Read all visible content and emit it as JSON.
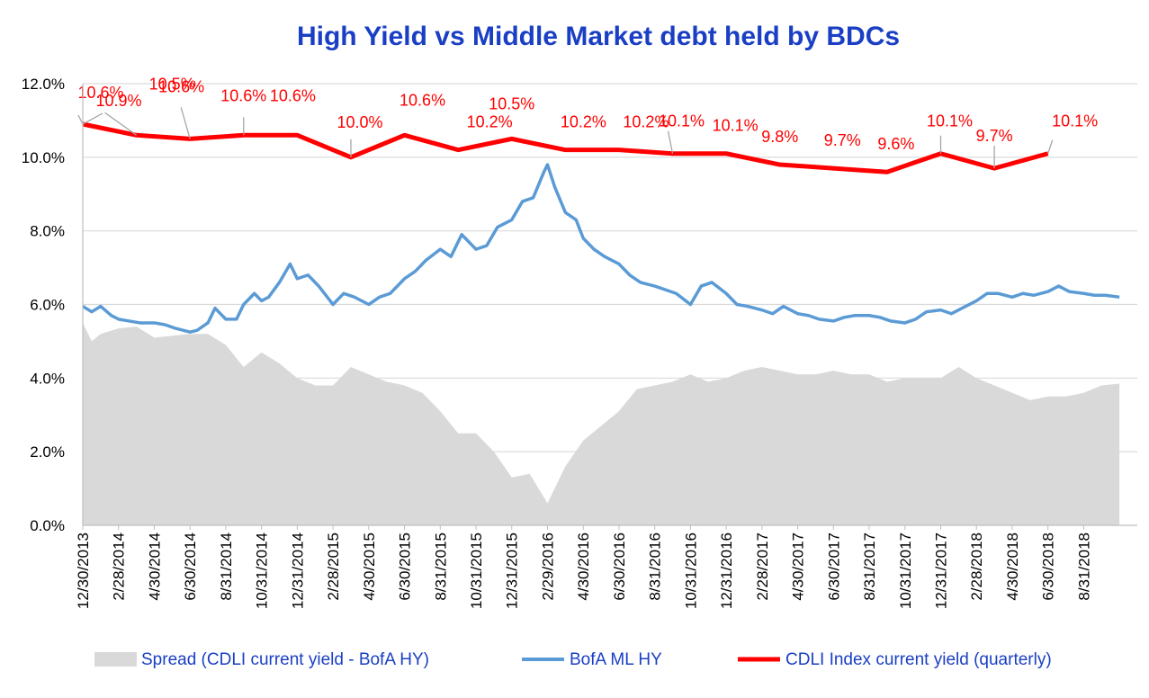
{
  "colors": {
    "title": "#1a3fc4",
    "spread": "#d9d9d9",
    "hy": "#5b9bd5",
    "cdli": "#ff0000",
    "label": "#ff0000",
    "legend_text": "#1a3fc4",
    "grid": "#d9d9d9",
    "leader": "#a6a6a6"
  },
  "chart_data": {
    "type": "line",
    "title": "High Yield  vs  Middle Market debt held by BDCs",
    "ylim": [
      0,
      12
    ],
    "yticks": [
      "0.0%",
      "2.0%",
      "4.0%",
      "6.0%",
      "8.0%",
      "10.0%",
      "12.0%"
    ],
    "grid": "horizontal",
    "legend_position": "bottom",
    "x_categories": [
      "12/30/2013",
      "2/28/2014",
      "4/30/2014",
      "6/30/2014",
      "8/31/2014",
      "10/31/2014",
      "12/31/2014",
      "2/28/2015",
      "4/30/2015",
      "6/30/2015",
      "8/31/2015",
      "10/31/2015",
      "12/31/2015",
      "2/29/2016",
      "4/30/2016",
      "6/30/2016",
      "8/31/2016",
      "10/31/2016",
      "12/31/2016",
      "2/28/2017",
      "4/30/2017",
      "6/30/2017",
      "8/31/2017",
      "10/31/2017",
      "12/31/2017",
      "2/28/2018",
      "4/30/2018",
      "6/30/2018",
      "8/31/2018"
    ],
    "series": [
      {
        "name": "Spread (CDLI current yield - BofA HY)",
        "kind": "area",
        "x": [
          0,
          0.25,
          0.5,
          1,
          1.5,
          2,
          2.5,
          3,
          3.5,
          4,
          4.5,
          5,
          5.5,
          6,
          6.5,
          7,
          7.5,
          8,
          8.5,
          9,
          9.5,
          10,
          10.5,
          11,
          11.5,
          12,
          12.5,
          13,
          13.5,
          14,
          14.5,
          15,
          15.5,
          16,
          16.5,
          17,
          17.5,
          18,
          18.5,
          19,
          19.5,
          20,
          20.5,
          21,
          21.5,
          22,
          22.5,
          23,
          23.5,
          24,
          24.5,
          25,
          25.5,
          26,
          26.5,
          27,
          27.5,
          28,
          28.5,
          29
        ],
        "values": [
          5.5,
          5.0,
          5.2,
          5.35,
          5.4,
          5.1,
          5.15,
          5.2,
          5.2,
          4.9,
          4.3,
          4.7,
          4.4,
          4.0,
          3.8,
          3.8,
          4.3,
          4.1,
          3.9,
          3.8,
          3.6,
          3.1,
          2.5,
          2.5,
          2.0,
          1.3,
          1.4,
          0.6,
          1.6,
          2.3,
          2.7,
          3.1,
          3.7,
          3.8,
          3.9,
          4.1,
          3.9,
          4.0,
          4.2,
          4.3,
          4.2,
          4.1,
          4.1,
          4.2,
          4.1,
          4.1,
          3.9,
          4.0,
          4.0,
          4.0,
          4.3,
          4.0,
          3.8,
          3.6,
          3.4,
          3.5,
          3.5,
          3.6,
          3.8,
          3.85
        ]
      },
      {
        "name": "BofA ML HY",
        "kind": "line",
        "x": [
          0,
          0.25,
          0.5,
          0.8,
          1,
          1.3,
          1.6,
          2,
          2.3,
          2.6,
          3,
          3.2,
          3.5,
          3.7,
          4,
          4.3,
          4.5,
          4.8,
          5,
          5.2,
          5.5,
          5.8,
          6,
          6.3,
          6.6,
          7,
          7.3,
          7.6,
          8,
          8.3,
          8.6,
          9,
          9.3,
          9.6,
          10,
          10.3,
          10.6,
          11,
          11.3,
          11.6,
          12,
          12.3,
          12.6,
          12.9,
          13,
          13.2,
          13.5,
          13.8,
          14,
          14.3,
          14.6,
          15,
          15.3,
          15.6,
          16,
          16.3,
          16.6,
          17,
          17.3,
          17.6,
          18,
          18.3,
          18.6,
          19,
          19.3,
          19.6,
          20,
          20.3,
          20.6,
          21,
          21.3,
          21.6,
          22,
          22.3,
          22.6,
          23,
          23.3,
          23.6,
          24,
          24.3,
          24.6,
          25,
          25.3,
          25.6,
          26,
          26.3,
          26.6,
          27,
          27.3,
          27.6,
          28,
          28.3,
          28.6,
          29
        ],
        "values": [
          5.95,
          5.8,
          5.95,
          5.7,
          5.6,
          5.55,
          5.5,
          5.5,
          5.45,
          5.35,
          5.25,
          5.3,
          5.5,
          5.9,
          5.6,
          5.6,
          6.0,
          6.3,
          6.1,
          6.2,
          6.6,
          7.1,
          6.7,
          6.8,
          6.5,
          6.0,
          6.3,
          6.2,
          6.0,
          6.2,
          6.3,
          6.7,
          6.9,
          7.2,
          7.5,
          7.3,
          7.9,
          7.5,
          7.6,
          8.1,
          8.3,
          8.8,
          8.9,
          9.6,
          9.8,
          9.2,
          8.5,
          8.3,
          7.8,
          7.5,
          7.3,
          7.1,
          6.8,
          6.6,
          6.5,
          6.4,
          6.3,
          6.0,
          6.5,
          6.6,
          6.3,
          6.0,
          5.95,
          5.85,
          5.75,
          5.95,
          5.75,
          5.7,
          5.6,
          5.55,
          5.65,
          5.7,
          5.7,
          5.65,
          5.55,
          5.5,
          5.6,
          5.8,
          5.85,
          5.75,
          5.9,
          6.1,
          6.3,
          6.3,
          6.2,
          6.3,
          6.25,
          6.35,
          6.5,
          6.35,
          6.3,
          6.25,
          6.25,
          6.2
        ]
      },
      {
        "name": "CDLI Index current yield (quarterly)",
        "kind": "line",
        "x": [
          0,
          1.5,
          3,
          4.5,
          6,
          7.5,
          9,
          10.5,
          12,
          13.5,
          15,
          16.5,
          18,
          19.5,
          21,
          22.5,
          24,
          25.5,
          27
        ],
        "values": [
          10.9,
          10.6,
          10.5,
          10.6,
          10.6,
          10.0,
          10.6,
          10.2,
          10.5,
          10.2,
          10.2,
          10.1,
          10.1,
          9.8,
          9.7,
          9.6,
          10.1,
          9.7,
          10.1
        ],
        "labels": [
          "10.9%",
          "10.6%",
          "10.5%",
          "10.6%",
          "10.6%",
          "10.0%",
          "10.6%",
          "10.2%",
          "10.5%",
          "10.2%",
          "10.2%",
          "10.1%",
          "10.1%",
          "9.8%",
          "9.7%",
          "9.6%",
          "10.1%",
          "9.7%",
          "10.1%"
        ],
        "extra_label": "10.6%"
      }
    ]
  }
}
